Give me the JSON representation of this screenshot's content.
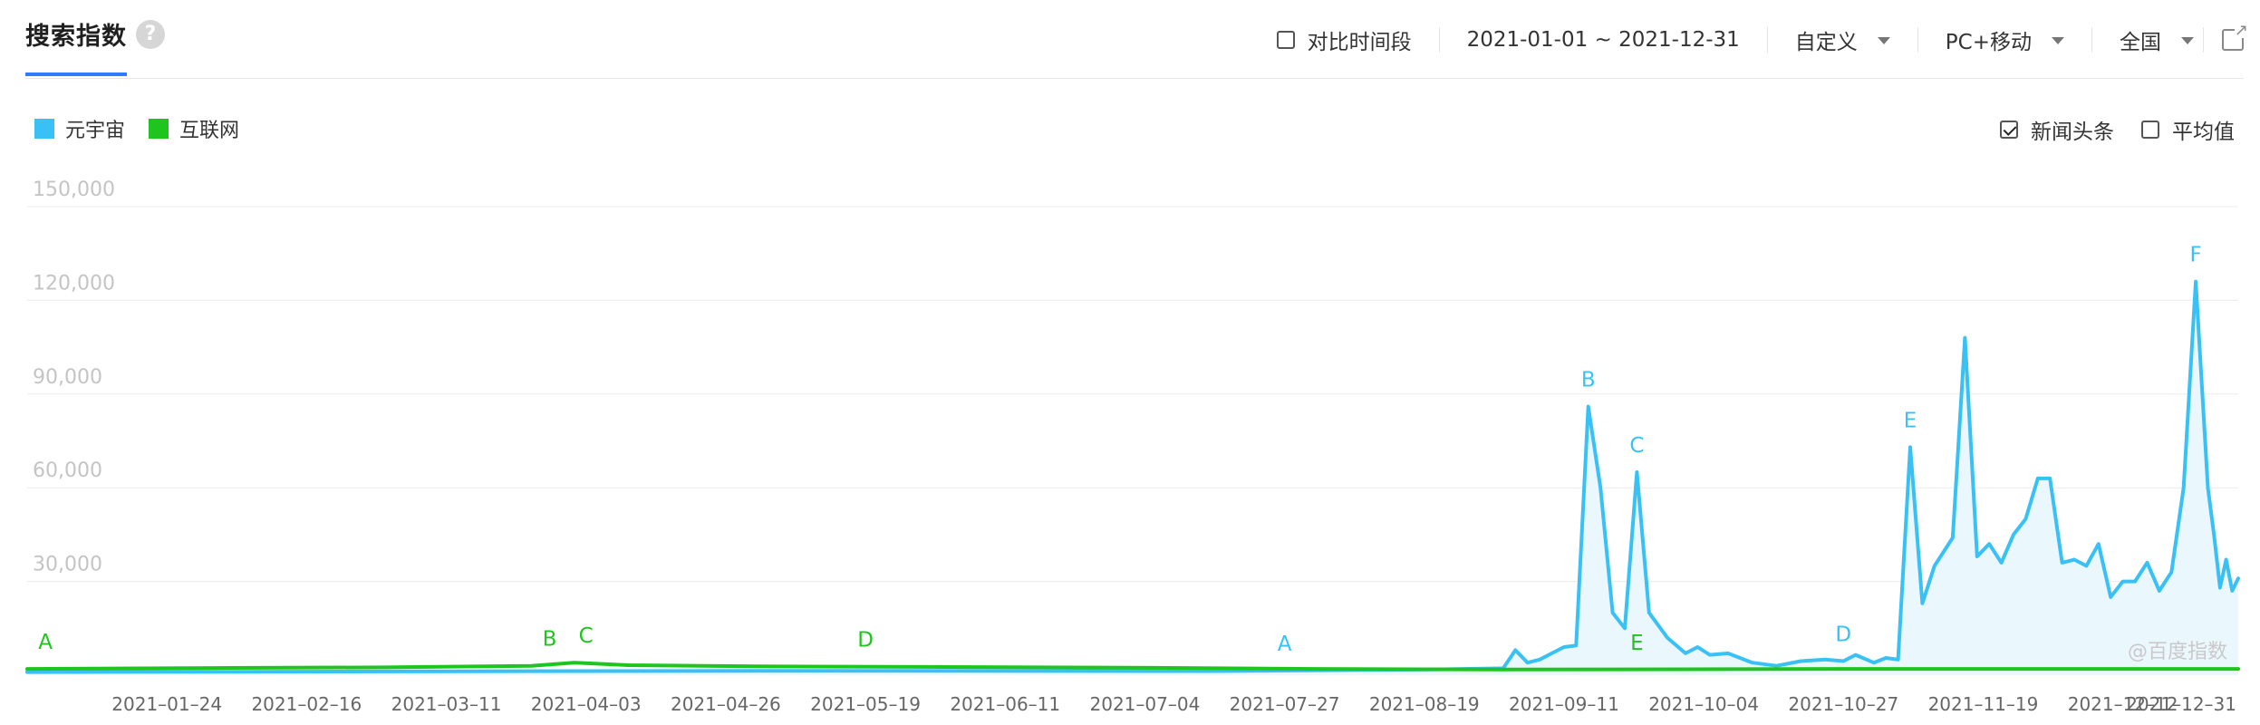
{
  "header": {
    "title": "搜索指数",
    "help": "?",
    "compare_label": "对比时间段",
    "date_range": "2021-01-01 ~ 2021-12-31",
    "mode": "自定义",
    "device": "PC+移动",
    "region": "全国"
  },
  "legend": [
    {
      "label": "元宇宙",
      "color": "#39c1f6"
    },
    {
      "label": "互联网",
      "color": "#1fc51f"
    }
  ],
  "options": {
    "news_label": "新闻头条",
    "news_checked": true,
    "avg_label": "平均值",
    "avg_checked": false
  },
  "watermark": "@百度指数",
  "chart_data": {
    "type": "area",
    "ylim": [
      0,
      150000
    ],
    "yticks": [
      30000,
      60000,
      90000,
      120000,
      150000
    ],
    "ytick_labels": [
      "30,000",
      "60,000",
      "90,000",
      "120,000",
      "150,000"
    ],
    "grid": true,
    "xlim": [
      "2021-01-01",
      "2021-12-31"
    ],
    "xticks": [
      "2021-01-24",
      "2021-02-16",
      "2021-03-11",
      "2021-04-03",
      "2021-04-26",
      "2021-05-19",
      "2021-06-11",
      "2021-07-04",
      "2021-07-27",
      "2021-08-19",
      "2021-09-11",
      "2021-10-04",
      "2021-10-27",
      "2021-11-19",
      "2021-12-12",
      "2021-12-31"
    ],
    "series": [
      {
        "name": "元宇宙",
        "color": "#39c1f6",
        "fill": "#eaf7fd",
        "points": [
          [
            "2021-01-01",
            1000
          ],
          [
            "2021-03-01",
            1200
          ],
          [
            "2021-05-01",
            1400
          ],
          [
            "2021-07-15",
            1300
          ],
          [
            "2021-08-20",
            1800
          ],
          [
            "2021-09-01",
            2200
          ],
          [
            "2021-09-03",
            8000
          ],
          [
            "2021-09-05",
            4000
          ],
          [
            "2021-09-07",
            5000
          ],
          [
            "2021-09-09",
            7000
          ],
          [
            "2021-09-11",
            9000
          ],
          [
            "2021-09-13",
            9500
          ],
          [
            "2021-09-15",
            86000
          ],
          [
            "2021-09-17",
            60000
          ],
          [
            "2021-09-19",
            20000
          ],
          [
            "2021-09-21",
            15000
          ],
          [
            "2021-09-23",
            65000
          ],
          [
            "2021-09-25",
            20000
          ],
          [
            "2021-09-28",
            12000
          ],
          [
            "2021-10-01",
            7000
          ],
          [
            "2021-10-03",
            9000
          ],
          [
            "2021-10-05",
            6500
          ],
          [
            "2021-10-08",
            7000
          ],
          [
            "2021-10-12",
            4000
          ],
          [
            "2021-10-16",
            3000
          ],
          [
            "2021-10-20",
            4500
          ],
          [
            "2021-10-24",
            5000
          ],
          [
            "2021-10-27",
            4500
          ],
          [
            "2021-10-29",
            6500
          ],
          [
            "2021-11-01",
            4000
          ],
          [
            "2021-11-03",
            5500
          ],
          [
            "2021-11-05",
            5000
          ],
          [
            "2021-11-07",
            73000
          ],
          [
            "2021-11-09",
            23000
          ],
          [
            "2021-11-11",
            35000
          ],
          [
            "2021-11-14",
            44000
          ],
          [
            "2021-11-16",
            108000
          ],
          [
            "2021-11-18",
            38000
          ],
          [
            "2021-11-20",
            42000
          ],
          [
            "2021-11-22",
            36000
          ],
          [
            "2021-11-24",
            45000
          ],
          [
            "2021-11-26",
            50000
          ],
          [
            "2021-11-28",
            63000
          ],
          [
            "2021-11-30",
            63000
          ],
          [
            "2021-12-02",
            36000
          ],
          [
            "2021-12-04",
            37000
          ],
          [
            "2021-12-06",
            35000
          ],
          [
            "2021-12-08",
            42000
          ],
          [
            "2021-12-10",
            25000
          ],
          [
            "2021-12-12",
            30000
          ],
          [
            "2021-12-14",
            30000
          ],
          [
            "2021-12-16",
            36000
          ],
          [
            "2021-12-18",
            27000
          ],
          [
            "2021-12-20",
            33000
          ],
          [
            "2021-12-22",
            60000
          ],
          [
            "2021-12-24",
            126000
          ],
          [
            "2021-12-26",
            60000
          ],
          [
            "2021-12-27",
            45000
          ],
          [
            "2021-12-28",
            28000
          ],
          [
            "2021-12-29",
            37000
          ],
          [
            "2021-12-30",
            27000
          ],
          [
            "2021-12-31",
            31000
          ]
        ],
        "annotations": [
          {
            "label": "A",
            "date": "2021-07-27",
            "value": 1500
          },
          {
            "label": "B",
            "date": "2021-09-15",
            "value": 86000
          },
          {
            "label": "C",
            "date": "2021-09-23",
            "value": 65000
          },
          {
            "label": "D",
            "date": "2021-10-27",
            "value": 4500
          },
          {
            "label": "E",
            "date": "2021-11-07",
            "value": 73000
          },
          {
            "label": "F",
            "date": "2021-12-24",
            "value": 126000
          }
        ]
      },
      {
        "name": "互联网",
        "color": "#1fc51f",
        "points": [
          [
            "2021-01-01",
            2000
          ],
          [
            "2021-02-01",
            2300
          ],
          [
            "2021-03-01",
            2500
          ],
          [
            "2021-03-25",
            3000
          ],
          [
            "2021-04-01",
            4000
          ],
          [
            "2021-04-10",
            3200
          ],
          [
            "2021-05-01",
            2800
          ],
          [
            "2021-06-01",
            2600
          ],
          [
            "2021-07-01",
            2400
          ],
          [
            "2021-08-01",
            2000
          ],
          [
            "2021-09-01",
            1800
          ],
          [
            "2021-10-01",
            1900
          ],
          [
            "2021-11-01",
            2000
          ],
          [
            "2021-12-01",
            2000
          ],
          [
            "2021-12-31",
            2000
          ]
        ],
        "annotations": [
          {
            "label": "A",
            "date": "2021-01-04",
            "value": 2000
          },
          {
            "label": "B",
            "date": "2021-03-28",
            "value": 3000
          },
          {
            "label": "C",
            "date": "2021-04-03",
            "value": 4000
          },
          {
            "label": "D",
            "date": "2021-05-19",
            "value": 2800
          },
          {
            "label": "E",
            "date": "2021-09-23",
            "value": 1800
          }
        ]
      }
    ]
  }
}
